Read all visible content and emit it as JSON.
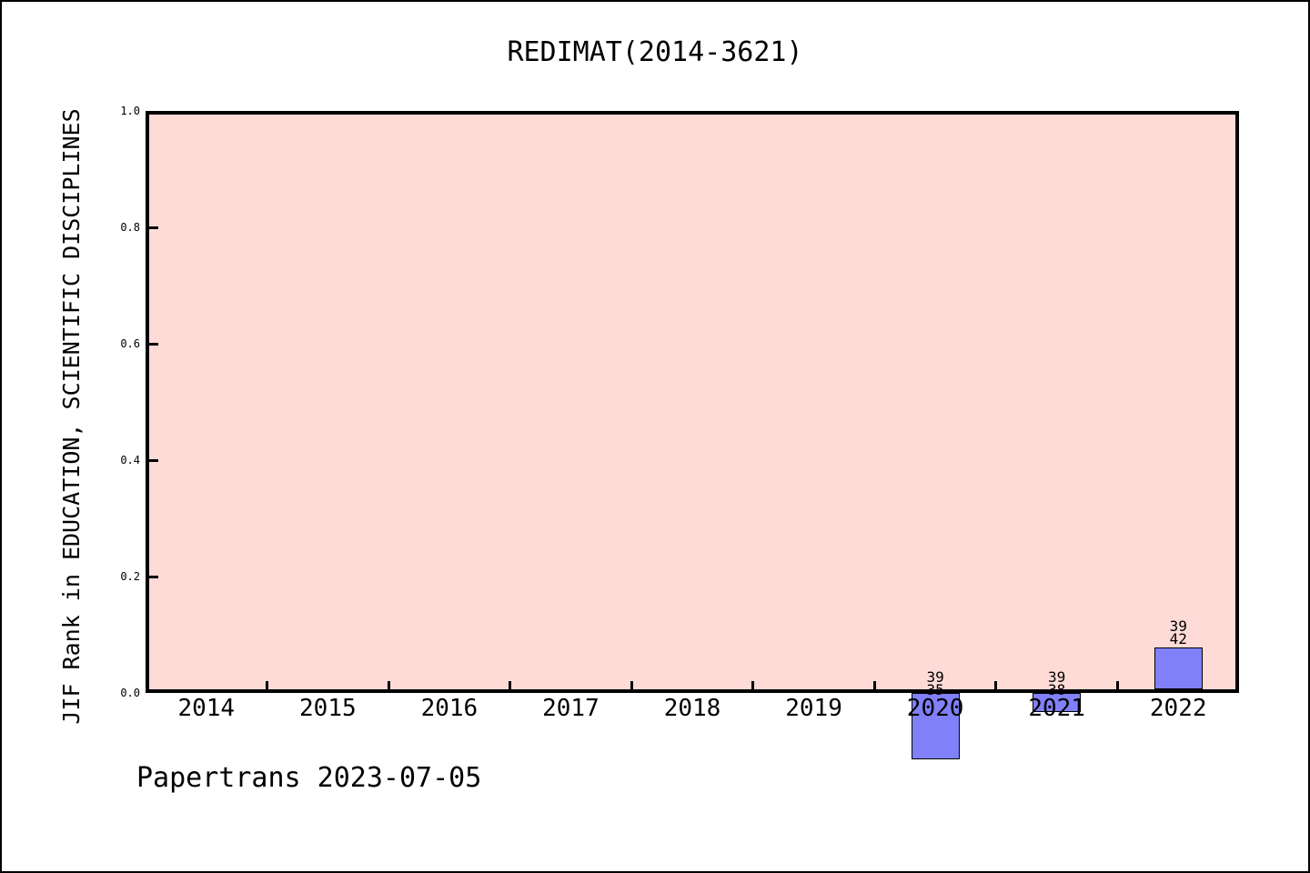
{
  "title": "REDIMAT(2014-3621)",
  "footer": "Papertrans 2023-07-05",
  "colors": {
    "plot_background": "#ffdbd7",
    "bar_fill": "#8080f8",
    "axis": "#000000"
  },
  "chart_data": {
    "type": "bar",
    "title": "REDIMAT(2014-3621)",
    "xlabel": "",
    "ylabel": "JIF Rank in EDUCATION, SCIENTIFIC DISCIPLINES",
    "categories": [
      "2014",
      "2015",
      "2016",
      "2017",
      "2018",
      "2019",
      "2020",
      "2021",
      "2022"
    ],
    "values": [
      null,
      null,
      null,
      null,
      null,
      null,
      -0.114,
      -0.033,
      0.072
    ],
    "annotations": [
      {
        "category": "2020",
        "lines": [
          "39",
          "35"
        ]
      },
      {
        "category": "2021",
        "lines": [
          "39",
          "38"
        ]
      },
      {
        "category": "2022",
        "lines": [
          "39",
          "42"
        ]
      }
    ],
    "ylim": [
      0.0,
      1.0
    ],
    "yticks": [
      "0.0",
      "0.2",
      "0.4",
      "0.6",
      "0.8",
      "1.0"
    ],
    "grid": false,
    "legend": null,
    "plot_background": "#ffdbd7",
    "bar_color": "#8080f8"
  }
}
